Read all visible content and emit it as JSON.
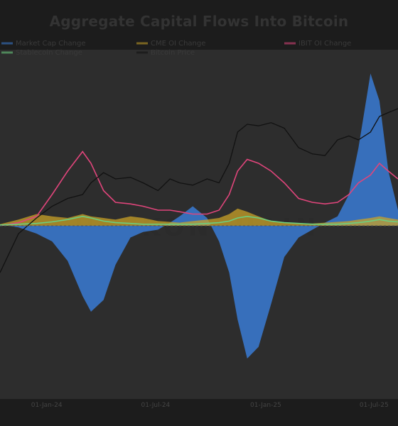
{
  "chart_data": {
    "type": "area",
    "title": "Aggregate Capital Flows Into Bitcoin",
    "xlabel": "",
    "ylabel": "",
    "x_ticks": [
      "01-Jan-24",
      "01-Jul-24",
      "01-Jan-25",
      "01-Jul-25"
    ],
    "x_range": [
      "2023-10-15",
      "2025-08-10"
    ],
    "legend_position": "top",
    "grid": false,
    "series": [
      {
        "name": "Market Cap Change",
        "style": "area",
        "color": "#3a7bd5",
        "x": [
          "2023-10-15",
          "2023-11-15",
          "2023-12-15",
          "2024-01-10",
          "2024-02-05",
          "2024-03-01",
          "2024-03-15",
          "2024-04-05",
          "2024-04-25",
          "2024-05-20",
          "2024-06-10",
          "2024-07-05",
          "2024-07-25",
          "2024-08-10",
          "2024-09-01",
          "2024-09-25",
          "2024-10-15",
          "2024-11-01",
          "2024-11-15",
          "2024-12-01",
          "2024-12-20",
          "2025-01-10",
          "2025-02-01",
          "2025-02-25",
          "2025-03-20",
          "2025-04-10",
          "2025-05-01",
          "2025-05-20",
          "2025-06-05",
          "2025-06-25",
          "2025-07-10",
          "2025-07-25",
          "2025-08-10"
        ],
        "values": [
          2,
          -2,
          -10,
          -20,
          -45,
          -90,
          -110,
          -95,
          -50,
          -15,
          -8,
          -5,
          4,
          12,
          25,
          10,
          -20,
          -60,
          -120,
          -170,
          -155,
          -100,
          -40,
          -15,
          -5,
          4,
          12,
          40,
          100,
          195,
          160,
          70,
          20
        ]
      },
      {
        "name": "CME OI Change",
        "style": "area",
        "color": "#c9a227",
        "x": [
          "2023-10-15",
          "2023-11-15",
          "2023-12-15",
          "2024-01-10",
          "2024-02-05",
          "2024-03-01",
          "2024-03-15",
          "2024-04-05",
          "2024-04-25",
          "2024-05-20",
          "2024-06-10",
          "2024-07-05",
          "2024-07-25",
          "2024-08-10",
          "2024-09-01",
          "2024-09-25",
          "2024-10-15",
          "2024-11-01",
          "2024-11-15",
          "2024-12-01",
          "2024-12-20",
          "2025-01-10",
          "2025-02-01",
          "2025-02-25",
          "2025-03-20",
          "2025-04-10",
          "2025-05-01",
          "2025-05-20",
          "2025-06-05",
          "2025-06-25",
          "2025-07-10",
          "2025-07-25",
          "2025-08-10"
        ],
        "values": [
          2,
          8,
          15,
          12,
          10,
          15,
          12,
          10,
          8,
          12,
          10,
          6,
          5,
          4,
          6,
          8,
          10,
          15,
          22,
          18,
          12,
          6,
          4,
          3,
          3,
          4,
          5,
          6,
          8,
          10,
          12,
          10,
          8
        ]
      },
      {
        "name": "IBIT OI Change",
        "style": "line",
        "color": "#e0457b",
        "x": [
          "2023-10-15",
          "2023-11-15",
          "2023-12-15",
          "2024-01-10",
          "2024-02-05",
          "2024-03-01",
          "2024-03-15",
          "2024-04-05",
          "2024-04-25",
          "2024-05-20",
          "2024-06-10",
          "2024-07-05",
          "2024-07-25",
          "2024-08-10",
          "2024-09-01",
          "2024-09-25",
          "2024-10-15",
          "2024-11-01",
          "2024-11-15",
          "2024-12-01",
          "2024-12-20",
          "2025-01-10",
          "2025-02-01",
          "2025-02-25",
          "2025-03-20",
          "2025-04-10",
          "2025-05-01",
          "2025-05-20",
          "2025-06-05",
          "2025-06-25",
          "2025-07-10",
          "2025-07-25",
          "2025-08-10"
        ],
        "values": [
          0,
          4,
          12,
          40,
          70,
          95,
          80,
          45,
          30,
          28,
          25,
          20,
          20,
          18,
          15,
          15,
          20,
          40,
          70,
          85,
          80,
          70,
          55,
          35,
          30,
          28,
          30,
          40,
          55,
          65,
          80,
          70,
          60
        ]
      },
      {
        "name": "Stablecoin Change",
        "style": "line",
        "color": "#6ccf7f",
        "x": [
          "2023-10-15",
          "2023-11-15",
          "2023-12-15",
          "2024-01-10",
          "2024-02-05",
          "2024-03-01",
          "2024-03-15",
          "2024-04-05",
          "2024-04-25",
          "2024-05-20",
          "2024-06-10",
          "2024-07-05",
          "2024-07-25",
          "2024-08-10",
          "2024-09-01",
          "2024-09-25",
          "2024-10-15",
          "2024-11-01",
          "2024-11-15",
          "2024-12-01",
          "2024-12-20",
          "2025-01-10",
          "2025-02-01",
          "2025-02-25",
          "2025-03-20",
          "2025-04-10",
          "2025-05-01",
          "2025-05-20",
          "2025-06-05",
          "2025-06-25",
          "2025-07-10",
          "2025-07-25",
          "2025-08-10"
        ],
        "values": [
          1,
          2,
          3,
          5,
          8,
          12,
          10,
          6,
          4,
          3,
          2,
          2,
          2,
          2,
          2,
          3,
          4,
          6,
          10,
          12,
          10,
          6,
          4,
          3,
          2,
          2,
          2,
          3,
          4,
          6,
          8,
          6,
          5
        ]
      },
      {
        "name": "Bitcoin Price",
        "style": "line",
        "color": "#111111",
        "x": [
          "2023-10-15",
          "2023-11-15",
          "2023-12-15",
          "2024-01-10",
          "2024-02-05",
          "2024-03-01",
          "2024-03-15",
          "2024-04-05",
          "2024-04-25",
          "2024-05-20",
          "2024-06-10",
          "2024-07-05",
          "2024-07-25",
          "2024-08-10",
          "2024-09-01",
          "2024-09-25",
          "2024-10-15",
          "2024-11-01",
          "2024-11-15",
          "2024-12-01",
          "2024-12-20",
          "2025-01-10",
          "2025-02-01",
          "2025-02-25",
          "2025-03-20",
          "2025-04-10",
          "2025-05-01",
          "2025-05-20",
          "2025-06-05",
          "2025-06-25",
          "2025-07-10",
          "2025-07-25",
          "2025-08-10"
        ],
        "values": [
          -60,
          -10,
          10,
          25,
          35,
          40,
          55,
          68,
          60,
          62,
          55,
          45,
          60,
          55,
          52,
          60,
          55,
          80,
          120,
          130,
          128,
          132,
          125,
          100,
          92,
          90,
          110,
          115,
          110,
          120,
          140,
          145,
          150
        ]
      }
    ]
  }
}
